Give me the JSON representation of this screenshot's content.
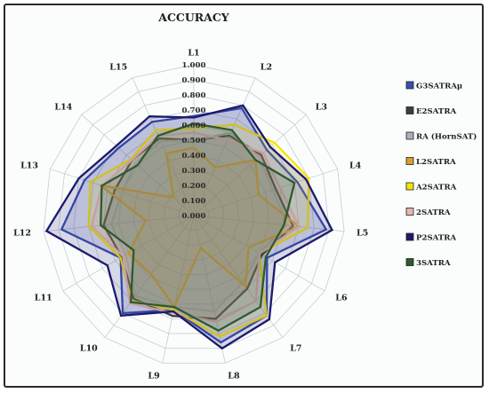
{
  "chart_data": {
    "type": "radar",
    "title": "ACCURACY",
    "categories": [
      "L1",
      "L2",
      "L3",
      "L4",
      "L5",
      "L6",
      "L7",
      "L8",
      "L9",
      "L10",
      "L11",
      "L12",
      "L13",
      "L14",
      "L15"
    ],
    "rlim": [
      0,
      1
    ],
    "ticks": [
      "0.000",
      "0.100",
      "0.200",
      "0.300",
      "0.400",
      "0.500",
      "0.600",
      "0.700",
      "0.800",
      "0.900",
      "1.000"
    ],
    "grid": true,
    "legend_position": "right",
    "series": [
      {
        "name": "G3SATRAμ",
        "color": "#3a4fae",
        "values": [
          0.66,
          0.78,
          0.65,
          0.72,
          0.88,
          0.56,
          0.82,
          0.86,
          0.64,
          0.8,
          0.56,
          0.88,
          0.76,
          0.67,
          0.68
        ]
      },
      {
        "name": "E2SATRA",
        "color": "#3c3c3c",
        "values": [
          0.5,
          0.58,
          0.6,
          0.57,
          0.66,
          0.52,
          0.6,
          0.7,
          0.68,
          0.68,
          0.55,
          0.6,
          0.55,
          0.55,
          0.56
        ]
      },
      {
        "name": "RA (HornSAT)",
        "color": "#a8b0bc",
        "values": [
          0.5,
          0.6,
          0.58,
          0.55,
          0.62,
          0.5,
          0.55,
          0.65,
          0.62,
          0.66,
          0.52,
          0.55,
          0.5,
          0.52,
          0.54
        ]
      },
      {
        "name": "L2SATRA",
        "color": "#d9a12a",
        "values": [
          0.45,
          0.35,
          0.55,
          0.45,
          0.7,
          0.42,
          0.58,
          0.22,
          0.62,
          0.48,
          0.5,
          0.32,
          0.65,
          0.18,
          0.45
        ]
      },
      {
        "name": "A2SATRA",
        "color": "#f2e30f",
        "values": [
          0.58,
          0.66,
          0.72,
          0.8,
          0.76,
          0.5,
          0.82,
          0.82,
          0.64,
          0.7,
          0.56,
          0.7,
          0.72,
          0.56,
          0.62
        ]
      },
      {
        "name": "2SATRA",
        "color": "#e6b8b0",
        "values": [
          0.55,
          0.55,
          0.62,
          0.6,
          0.7,
          0.5,
          0.7,
          0.72,
          0.66,
          0.72,
          0.54,
          0.68,
          0.64,
          0.55,
          0.58
        ]
      },
      {
        "name": "P2SATRA",
        "color": "#1c1a6b",
        "values": [
          0.65,
          0.8,
          0.68,
          0.78,
          0.92,
          0.62,
          0.85,
          0.9,
          0.65,
          0.82,
          0.66,
          0.98,
          0.8,
          0.69,
          0.72
        ]
      },
      {
        "name": "3SATRA",
        "color": "#2e5a2e",
        "values": [
          0.61,
          0.62,
          0.55,
          0.7,
          0.6,
          0.55,
          0.75,
          0.78,
          0.62,
          0.71,
          0.46,
          0.62,
          0.64,
          0.5,
          0.58
        ]
      }
    ]
  }
}
